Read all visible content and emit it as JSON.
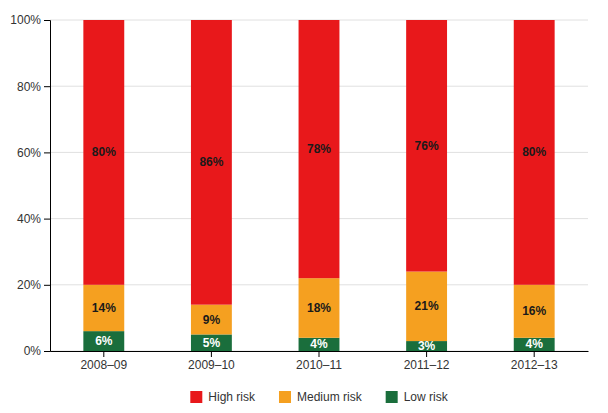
{
  "chart_data": {
    "type": "bar",
    "stacked": true,
    "categories": [
      "2008–09",
      "2009–10",
      "2010–11",
      "2011–12",
      "2012–13"
    ],
    "series": [
      {
        "name": "Low risk",
        "color": "#1a6e3c",
        "values": [
          6,
          5,
          4,
          3,
          4
        ],
        "value_labels": [
          "6%",
          "5%",
          "4%",
          "3%",
          "4%"
        ]
      },
      {
        "name": "Medium risk",
        "color": "#f5a020",
        "values": [
          14,
          9,
          18,
          21,
          16
        ],
        "value_labels": [
          "14%",
          "9%",
          "18%",
          "21%",
          "16%"
        ]
      },
      {
        "name": "High risk",
        "color": "#e8181b",
        "values": [
          80,
          86,
          78,
          76,
          80
        ],
        "value_labels": [
          "80%",
          "86%",
          "78%",
          "76%",
          "80%"
        ]
      }
    ],
    "ylim": [
      0,
      100
    ],
    "yticks": [
      {
        "value": 0,
        "label": "0%"
      },
      {
        "value": 20,
        "label": "20%"
      },
      {
        "value": 40,
        "label": "40%"
      },
      {
        "value": 60,
        "label": "60%"
      },
      {
        "value": 80,
        "label": "80%"
      },
      {
        "value": 100,
        "label": "100%"
      }
    ],
    "grid": true,
    "data_labels": true,
    "legend": "bottom"
  }
}
